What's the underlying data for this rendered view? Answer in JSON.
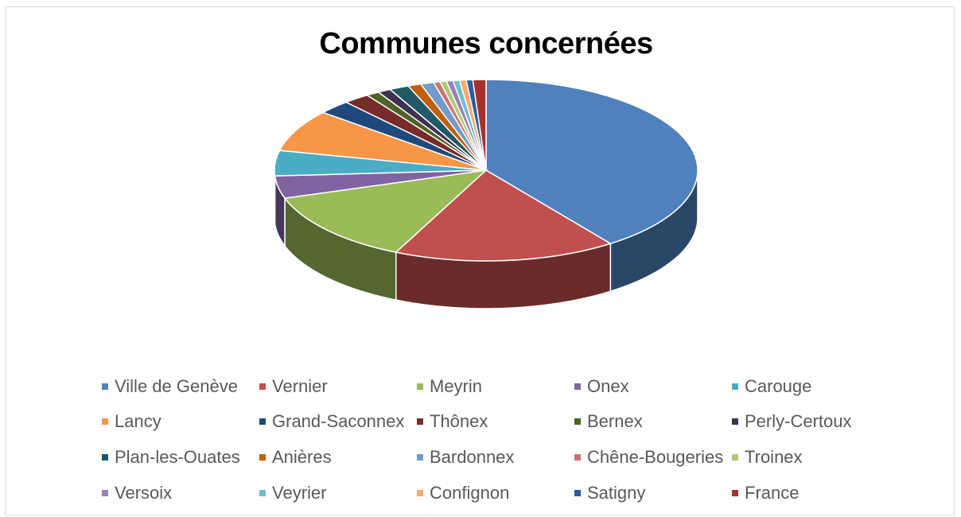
{
  "chart_data": {
    "type": "pie",
    "title": "Communes concernées",
    "legend_position": "bottom",
    "slices": [
      {
        "label": "Ville de Genève",
        "value": 40.0,
        "color": "#4f81bd"
      },
      {
        "label": "Vernier",
        "value": 17.0,
        "color": "#c0504d"
      },
      {
        "label": "Meyrin",
        "value": 13.0,
        "color": "#9bbb59"
      },
      {
        "label": "Onex",
        "value": 4.0,
        "color": "#8064a2"
      },
      {
        "label": "Carouge",
        "value": 4.5,
        "color": "#4bacc6"
      },
      {
        "label": "Lancy",
        "value": 7.5,
        "color": "#f79646"
      },
      {
        "label": "Grand-Saconnex",
        "value": 2.5,
        "color": "#1f497d"
      },
      {
        "label": "Thônex",
        "value": 2.0,
        "color": "#772c2a"
      },
      {
        "label": "Bernex",
        "value": 1.0,
        "color": "#4f6228"
      },
      {
        "label": "Perly-Certoux",
        "value": 1.0,
        "color": "#3f3151"
      },
      {
        "label": "Plan-les-Ouates",
        "value": 1.5,
        "color": "#215967"
      },
      {
        "label": "Anières",
        "value": 1.0,
        "color": "#c0600c"
      },
      {
        "label": "Bardonnex",
        "value": 1.0,
        "color": "#729aca"
      },
      {
        "label": "Chêne-Bougeries",
        "value": 0.5,
        "color": "#cd7371"
      },
      {
        "label": "Troinex",
        "value": 0.5,
        "color": "#afc97a"
      },
      {
        "label": "Versoix",
        "value": 0.5,
        "color": "#9983b5"
      },
      {
        "label": "Veyrier",
        "value": 0.5,
        "color": "#6fbdd1"
      },
      {
        "label": "Confignon",
        "value": 0.5,
        "color": "#f9ab6b"
      },
      {
        "label": "Satigny",
        "value": 0.5,
        "color": "#2c5d9a"
      },
      {
        "label": "France",
        "value": 1.0,
        "color": "#a5302e"
      }
    ]
  }
}
